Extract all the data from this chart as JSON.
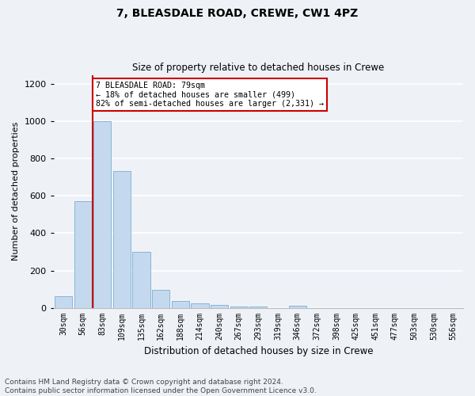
{
  "title1": "7, BLEASDALE ROAD, CREWE, CW1 4PZ",
  "title2": "Size of property relative to detached houses in Crewe",
  "xlabel": "Distribution of detached houses by size in Crewe",
  "ylabel": "Number of detached properties",
  "bar_labels": [
    "30sqm",
    "56sqm",
    "83sqm",
    "109sqm",
    "135sqm",
    "162sqm",
    "188sqm",
    "214sqm",
    "240sqm",
    "267sqm",
    "293sqm",
    "319sqm",
    "346sqm",
    "372sqm",
    "398sqm",
    "425sqm",
    "451sqm",
    "477sqm",
    "503sqm",
    "530sqm",
    "556sqm"
  ],
  "bar_values": [
    60,
    570,
    1000,
    735,
    300,
    95,
    35,
    22,
    15,
    8,
    5,
    0,
    12,
    0,
    0,
    0,
    0,
    0,
    0,
    0,
    0
  ],
  "bar_color": "#c5d9ee",
  "bar_edge_color": "#7aaed4",
  "vline_pos": 1.5,
  "vline_color": "#cc0000",
  "annotation_text": "7 BLEASDALE ROAD: 79sqm\n← 18% of detached houses are smaller (499)\n82% of semi-detached houses are larger (2,331) →",
  "annotation_box_color": "#ffffff",
  "annotation_box_edge": "#cc0000",
  "ylim": [
    0,
    1250
  ],
  "yticks": [
    0,
    200,
    400,
    600,
    800,
    1000,
    1200
  ],
  "footer1": "Contains HM Land Registry data © Crown copyright and database right 2024.",
  "footer2": "Contains public sector information licensed under the Open Government Licence v3.0.",
  "bg_color": "#eef2f7",
  "plot_bg_color": "#eef2f7",
  "grid_color": "#ffffff",
  "title1_fontsize": 10,
  "title2_fontsize": 8.5,
  "ylabel_fontsize": 8,
  "xlabel_fontsize": 8.5,
  "tick_fontsize": 7,
  "ytick_fontsize": 8,
  "footer_fontsize": 6.5
}
